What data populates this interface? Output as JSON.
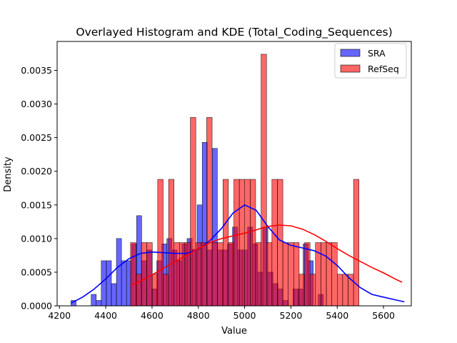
{
  "chart_data": {
    "type": "bar",
    "title": "Overlayed Histogram and KDE (Total_Coding_Sequences)",
    "xlabel": "Value",
    "ylabel": "Density",
    "xlim": [
      4190,
      5720
    ],
    "ylim": [
      0,
      0.00393
    ],
    "xticks": [
      4200,
      4400,
      4600,
      4800,
      5000,
      5200,
      5400,
      5600
    ],
    "yticks": [
      0.0,
      0.0005,
      0.001,
      0.0015,
      0.002,
      0.0025,
      0.003,
      0.0035
    ],
    "ytick_labels": [
      "0.0000",
      "0.0005",
      "0.0010",
      "0.0015",
      "0.0020",
      "0.0025",
      "0.0030",
      "0.0035"
    ],
    "xtick_labels": [
      "4200",
      "4400",
      "4600",
      "4800",
      "5000",
      "5200",
      "5400",
      "5600"
    ],
    "grid": false,
    "legend_position": "top-right",
    "series": [
      {
        "name": "SRA",
        "color": "#0000ff",
        "bin_start": 4250,
        "bin_width": 21.8,
        "values": [
          8e-05,
          0,
          0,
          0,
          0.00017,
          8e-05,
          0.00067,
          0.00067,
          0.00033,
          0.001,
          0.00067,
          0.00067,
          0.00092,
          0.00134,
          0.00067,
          0.00083,
          0.00025,
          0.00067,
          0.00092,
          0.001,
          0.00083,
          0.00067,
          0.00092,
          0.001,
          0.00084,
          0.0015,
          0.00243,
          0.00083,
          0.00234,
          0.00083,
          0.00083,
          0.00092,
          0.00117,
          0.00083,
          0.00083,
          0.00117,
          0.00092,
          0.0005,
          0.00117,
          0.0005,
          0.00033,
          0.00025,
          8e-05,
          0,
          0.00025,
          0.00025,
          0.00092,
          0.00067,
          0,
          0.00017
        ]
      },
      {
        "name": "RefSeq",
        "color": "#ff0000",
        "bin_start": 4507,
        "bin_width": 23.5,
        "values": [
          0.00094,
          0.00047,
          0.00094,
          0.00094,
          0.00047,
          0.00188,
          0.00047,
          0.00188,
          0.00094,
          0.00094,
          0.00094,
          0.0028,
          0.00094,
          0.00094,
          0.0028,
          0.00094,
          0.00094,
          0.00188,
          0.00094,
          0.00188,
          0.00188,
          0.00188,
          0.00188,
          0.00094,
          0.00374,
          0.00094,
          0.00188,
          0.00188,
          0.00094,
          0.00094,
          0.00094,
          0.00047,
          0.00094,
          0.00047,
          0.00094,
          0.00094,
          0.00094,
          0.00094,
          0.00047,
          0.00047,
          0.00047,
          0.00188
        ]
      }
    ],
    "kde": [
      {
        "name": "SRA",
        "color": "#0000ff",
        "x": [
          4250,
          4300,
          4350,
          4400,
          4450,
          4500,
          4550,
          4600,
          4650,
          4700,
          4750,
          4800,
          4850,
          4900,
          4950,
          5000,
          5050,
          5100,
          5150,
          5200,
          5250,
          5300,
          5350,
          5400,
          5450,
          5500,
          5550,
          5600,
          5650,
          5690
        ],
        "y": [
          4e-05,
          0.00013,
          0.00025,
          0.0004,
          0.00057,
          0.0007,
          0.00078,
          0.0008,
          0.00079,
          0.00078,
          0.00078,
          0.00084,
          0.00097,
          0.00115,
          0.00138,
          0.0015,
          0.00142,
          0.00118,
          0.00098,
          0.0009,
          0.00086,
          0.00082,
          0.00074,
          0.0006,
          0.00042,
          0.00027,
          0.00017,
          0.00013,
          9e-05,
          6e-05
        ]
      },
      {
        "name": "RefSeq",
        "color": "#ff0000",
        "x": [
          4507,
          4550,
          4600,
          4650,
          4700,
          4750,
          4800,
          4850,
          4900,
          4950,
          5000,
          5050,
          5100,
          5150,
          5200,
          5250,
          5300,
          5350,
          5400,
          5450,
          5500,
          5550,
          5600,
          5650,
          5680
        ],
        "y": [
          0.0003,
          0.00037,
          0.00046,
          0.00056,
          0.00066,
          0.00075,
          0.00085,
          0.00094,
          0.001,
          0.00104,
          0.00108,
          0.00113,
          0.00118,
          0.0012,
          0.00119,
          0.00114,
          0.00106,
          0.00096,
          0.00085,
          0.00075,
          0.00066,
          0.00057,
          0.00049,
          0.0004,
          0.00035
        ]
      }
    ]
  }
}
